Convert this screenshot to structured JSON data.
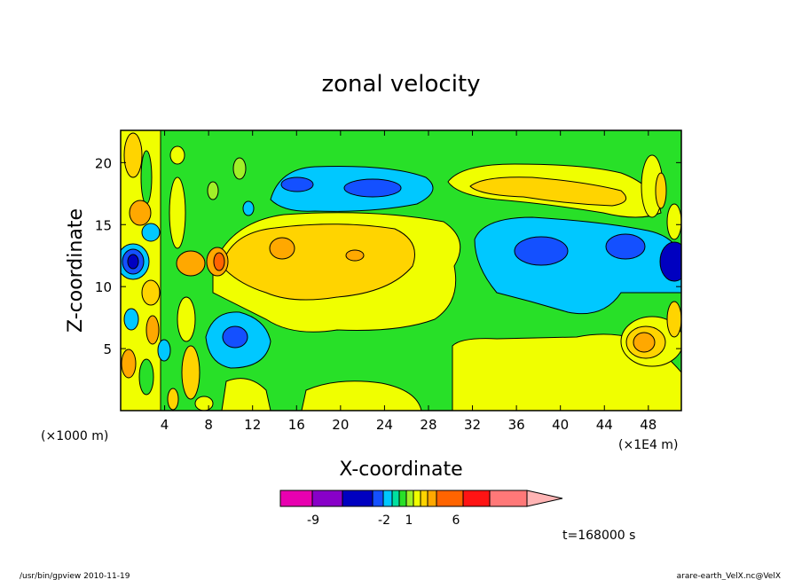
{
  "chart_data": {
    "type": "heatmap",
    "title": "zonal velocity",
    "xlabel": "X-coordinate",
    "ylabel": "Z-coordinate",
    "x_unit_note": "(×1000 m)",
    "x_scale_note": "(×1E4 m)",
    "xlim": [
      0,
      51
    ],
    "ylim": [
      0,
      22.6
    ],
    "x_ticks": [
      "4",
      "8",
      "12",
      "16",
      "20",
      "24",
      "28",
      "32",
      "36",
      "40",
      "44",
      "48"
    ],
    "y_ticks": [
      "5",
      "10",
      "15",
      "20"
    ],
    "time_label": "t=168000 s",
    "colorbar": {
      "tick_labels": [
        "-9",
        "-2",
        "1",
        "6"
      ],
      "colors": [
        "#e800b0",
        "#8800c8",
        "#0000c0",
        "#1450ff",
        "#00c8ff",
        "#00e0a0",
        "#28e028",
        "#a0f028",
        "#f0ff00",
        "#ffd400",
        "#ffa800",
        "#ff6400",
        "#ff1414",
        "#ff7878",
        "#ffb4b4"
      ],
      "extend": "max"
    }
  },
  "footer": {
    "left": "/usr/bin/gpview   2010-11-19",
    "right": "arare-earth_VelX.nc@VelX"
  },
  "colors": {
    "green": "#28e028",
    "yellow": "#f0ff00",
    "light_orange": "#ffd400",
    "orange": "#ffa800",
    "cyan": "#00c8ff",
    "blue": "#1450ff",
    "dark_blue": "#0000c0"
  }
}
